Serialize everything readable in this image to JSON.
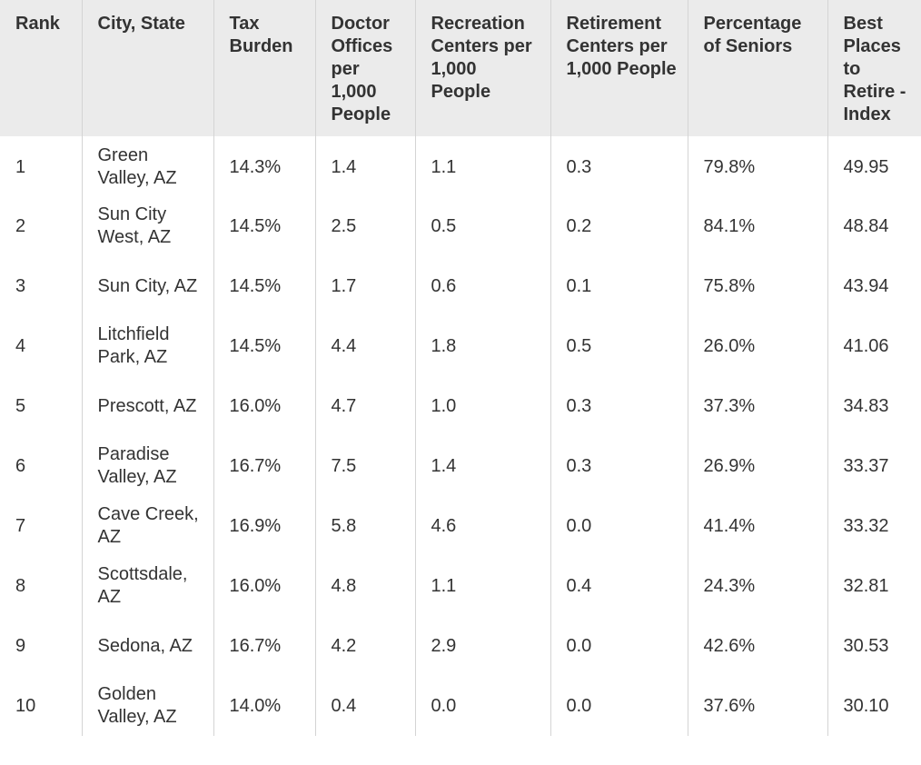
{
  "table": {
    "headers": [
      "Rank",
      "City, State",
      "Tax Burden",
      "Doctor Offices per 1,000 People",
      "Recreation Centers per 1,000 People",
      "Retirement Centers per 1,000 People",
      "Percentage of Seniors",
      "Best Places to Retire - Index"
    ],
    "rows": [
      [
        "1",
        "Green Valley, AZ",
        "14.3%",
        "1.4",
        "1.1",
        "0.3",
        "79.8%",
        "49.95"
      ],
      [
        "2",
        "Sun City West, AZ",
        "14.5%",
        "2.5",
        "0.5",
        "0.2",
        "84.1%",
        "48.84"
      ],
      [
        "3",
        "Sun City, AZ",
        "14.5%",
        "1.7",
        "0.6",
        "0.1",
        "75.8%",
        "43.94"
      ],
      [
        "4",
        "Litchfield Park, AZ",
        "14.5%",
        "4.4",
        "1.8",
        "0.5",
        "26.0%",
        "41.06"
      ],
      [
        "5",
        "Prescott, AZ",
        "16.0%",
        "4.7",
        "1.0",
        "0.3",
        "37.3%",
        "34.83"
      ],
      [
        "6",
        "Paradise Valley, AZ",
        "16.7%",
        "7.5",
        "1.4",
        "0.3",
        "26.9%",
        "33.37"
      ],
      [
        "7",
        "Cave Creek, AZ",
        "16.9%",
        "5.8",
        "4.6",
        "0.0",
        "41.4%",
        "33.32"
      ],
      [
        "8",
        "Scottsdale, AZ",
        "16.0%",
        "4.8",
        "1.1",
        "0.4",
        "24.3%",
        "32.81"
      ],
      [
        "9",
        "Sedona, AZ",
        "16.7%",
        "4.2",
        "2.9",
        "0.0",
        "42.6%",
        "30.53"
      ],
      [
        "10",
        "Golden Valley, AZ",
        "14.0%",
        "0.4",
        "0.0",
        "0.0",
        "37.6%",
        "30.10"
      ]
    ]
  }
}
